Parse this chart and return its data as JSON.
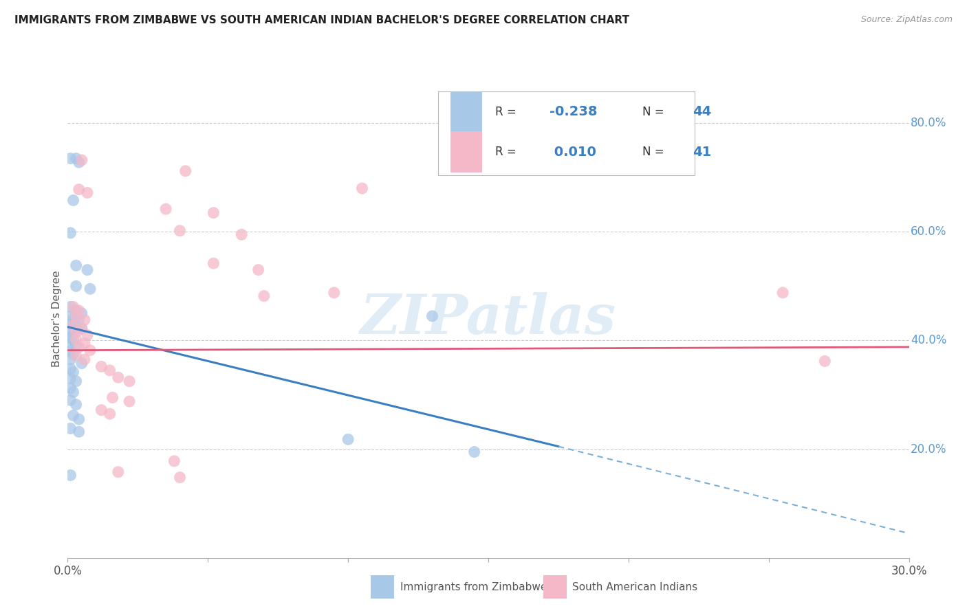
{
  "title": "IMMIGRANTS FROM ZIMBABWE VS SOUTH AMERICAN INDIAN BACHELOR'S DEGREE CORRELATION CHART",
  "source": "Source: ZipAtlas.com",
  "ylabel": "Bachelor's Degree",
  "xlim": [
    0.0,
    0.3
  ],
  "ylim": [
    0.0,
    0.88
  ],
  "blue_color": "#a8c8e8",
  "pink_color": "#f4b8c8",
  "blue_line_color": "#3a7fc1",
  "pink_line_color": "#e05878",
  "dashed_line_color": "#7ab0d8",
  "watermark": "ZIPatlas",
  "blue_line": {
    "x0": 0.0,
    "y0": 0.425,
    "x1": 0.175,
    "y1": 0.205,
    "xd1": 0.175,
    "yd1": 0.205,
    "xd2": 0.3,
    "yd2": 0.045
  },
  "pink_line": {
    "x0": 0.0,
    "y0": 0.382,
    "x1": 0.3,
    "y1": 0.388
  },
  "blue_dots": [
    [
      0.001,
      0.735
    ],
    [
      0.003,
      0.735
    ],
    [
      0.004,
      0.728
    ],
    [
      0.002,
      0.658
    ],
    [
      0.001,
      0.598
    ],
    [
      0.003,
      0.538
    ],
    [
      0.007,
      0.53
    ],
    [
      0.003,
      0.5
    ],
    [
      0.008,
      0.495
    ],
    [
      0.001,
      0.462
    ],
    [
      0.003,
      0.455
    ],
    [
      0.005,
      0.45
    ],
    [
      0.001,
      0.445
    ],
    [
      0.002,
      0.44
    ],
    [
      0.004,
      0.438
    ],
    [
      0.001,
      0.43
    ],
    [
      0.002,
      0.428
    ],
    [
      0.003,
      0.425
    ],
    [
      0.005,
      0.422
    ],
    [
      0.001,
      0.415
    ],
    [
      0.002,
      0.412
    ],
    [
      0.001,
      0.405
    ],
    [
      0.002,
      0.4
    ],
    [
      0.001,
      0.395
    ],
    [
      0.003,
      0.39
    ],
    [
      0.001,
      0.38
    ],
    [
      0.002,
      0.375
    ],
    [
      0.001,
      0.365
    ],
    [
      0.005,
      0.358
    ],
    [
      0.001,
      0.348
    ],
    [
      0.002,
      0.342
    ],
    [
      0.001,
      0.33
    ],
    [
      0.003,
      0.325
    ],
    [
      0.001,
      0.312
    ],
    [
      0.002,
      0.305
    ],
    [
      0.001,
      0.29
    ],
    [
      0.003,
      0.282
    ],
    [
      0.002,
      0.262
    ],
    [
      0.004,
      0.255
    ],
    [
      0.001,
      0.238
    ],
    [
      0.004,
      0.232
    ],
    [
      0.001,
      0.152
    ],
    [
      0.13,
      0.445
    ],
    [
      0.1,
      0.218
    ],
    [
      0.145,
      0.195
    ]
  ],
  "pink_dots": [
    [
      0.005,
      0.732
    ],
    [
      0.042,
      0.712
    ],
    [
      0.004,
      0.678
    ],
    [
      0.007,
      0.672
    ],
    [
      0.105,
      0.68
    ],
    [
      0.035,
      0.642
    ],
    [
      0.052,
      0.635
    ],
    [
      0.04,
      0.602
    ],
    [
      0.062,
      0.595
    ],
    [
      0.052,
      0.542
    ],
    [
      0.068,
      0.53
    ],
    [
      0.002,
      0.462
    ],
    [
      0.004,
      0.455
    ],
    [
      0.003,
      0.445
    ],
    [
      0.006,
      0.438
    ],
    [
      0.002,
      0.428
    ],
    [
      0.005,
      0.422
    ],
    [
      0.003,
      0.415
    ],
    [
      0.007,
      0.41
    ],
    [
      0.003,
      0.402
    ],
    [
      0.006,
      0.395
    ],
    [
      0.004,
      0.388
    ],
    [
      0.008,
      0.382
    ],
    [
      0.003,
      0.372
    ],
    [
      0.006,
      0.365
    ],
    [
      0.07,
      0.482
    ],
    [
      0.095,
      0.488
    ],
    [
      0.012,
      0.352
    ],
    [
      0.015,
      0.345
    ],
    [
      0.018,
      0.332
    ],
    [
      0.022,
      0.325
    ],
    [
      0.016,
      0.295
    ],
    [
      0.022,
      0.288
    ],
    [
      0.012,
      0.272
    ],
    [
      0.015,
      0.265
    ],
    [
      0.038,
      0.178
    ],
    [
      0.018,
      0.158
    ],
    [
      0.04,
      0.148
    ],
    [
      0.27,
      0.362
    ],
    [
      0.255,
      0.488
    ]
  ]
}
